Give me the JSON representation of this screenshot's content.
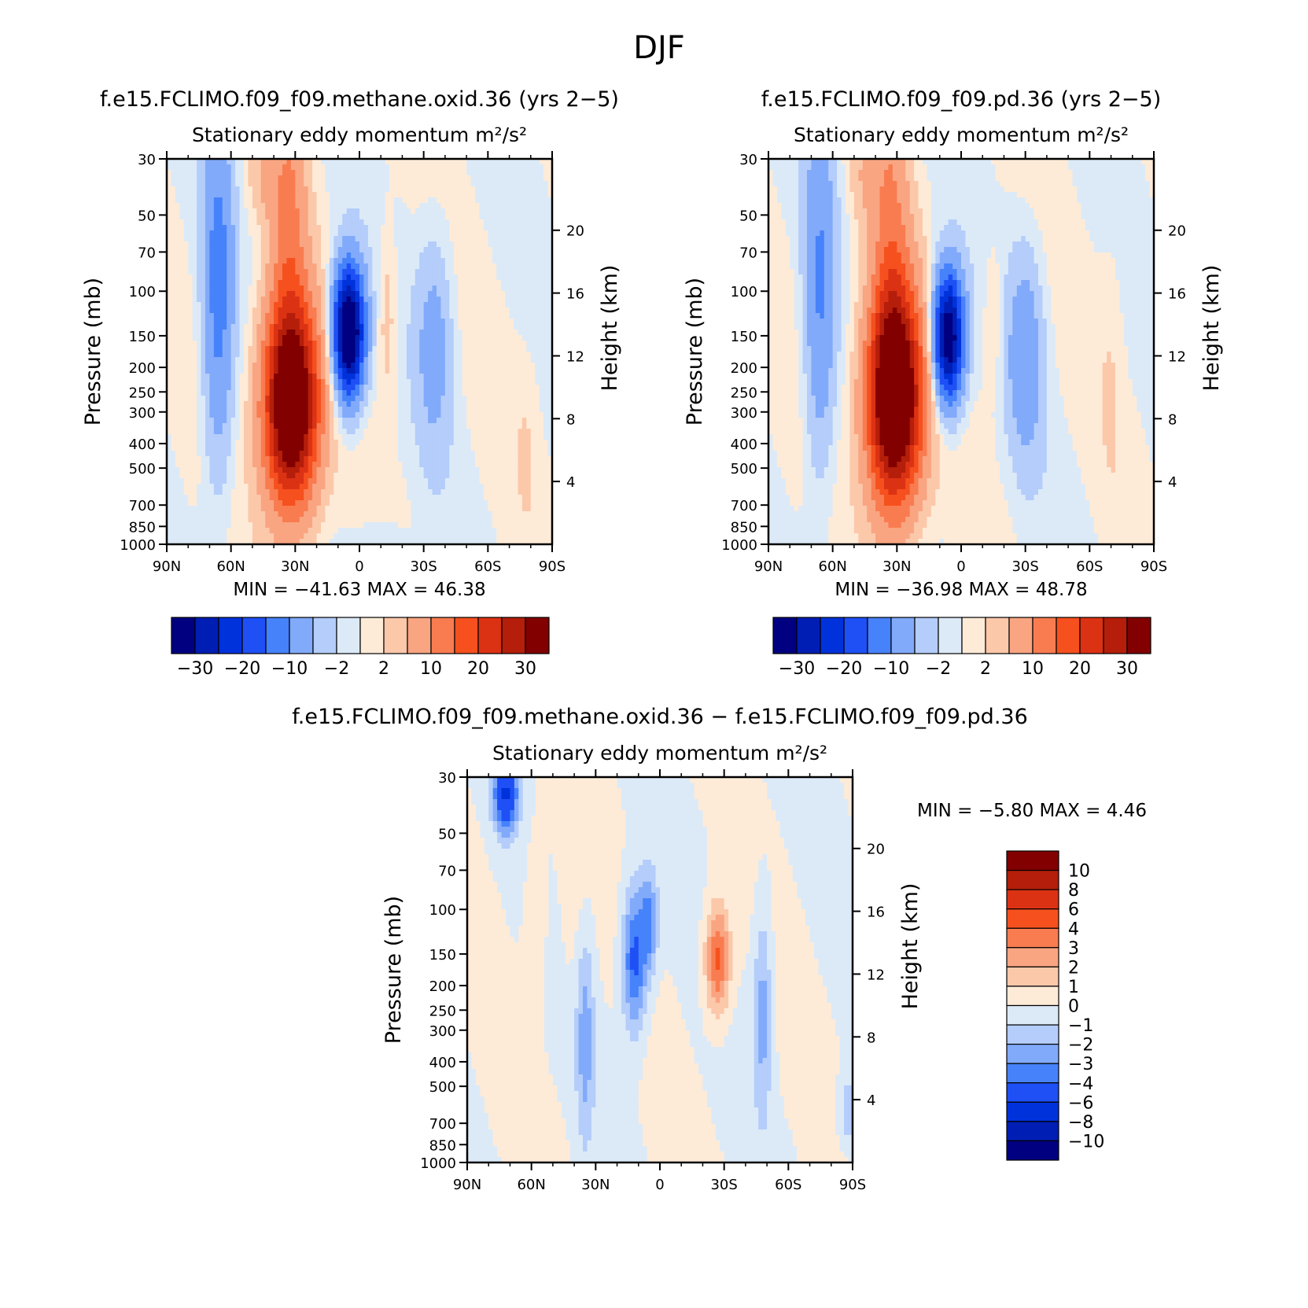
{
  "figure": {
    "title": "DJF"
  },
  "palettes": {
    "main": [
      "#000080",
      "#001eb4",
      "#0032dc",
      "#1e50f5",
      "#4682fa",
      "#82aafa",
      "#b4cdfa",
      "#dceaf8",
      "#fdebd8",
      "#fcc8aa",
      "#f9a582",
      "#f97c50",
      "#f5501e",
      "#dc3214",
      "#b41e0a",
      "#820000"
    ],
    "diff": [
      "#000080",
      "#001eb4",
      "#0032dc",
      "#1e50f5",
      "#4682fa",
      "#82aafa",
      "#b4cdfa",
      "#dceaf8",
      "#fdebd8",
      "#fcc8aa",
      "#f9a582",
      "#f97c50",
      "#f5501e",
      "#dc3214",
      "#b41e0a",
      "#820000"
    ]
  },
  "colorbars": {
    "main": {
      "labels": [
        "-30",
        "-20",
        "-10",
        "-2",
        "2",
        "10",
        "20",
        "30"
      ]
    },
    "diff": {
      "labels": [
        "10",
        "8",
        "6",
        "4",
        "3",
        "2",
        "1",
        "0",
        "-1",
        "-2",
        "-3",
        "-4",
        "-6",
        "-8",
        "-10"
      ]
    }
  },
  "chart_data": [
    {
      "id": "panel1",
      "type": "heatmap",
      "title": "f.e15.FCLIMO.f09_f09.methane.oxid.36 (yrs 2-5)",
      "subtitle": "Stationary eddy momentum",
      "units": "m²/s²",
      "ylabel": "Pressure (mb)",
      "ylabel_right": "Height (km)",
      "x_ticks": [
        "90N",
        "60N",
        "30N",
        "0",
        "30S",
        "60S",
        "90S"
      ],
      "y_ticks": [
        "30",
        "50",
        "70",
        "100",
        "150",
        "200",
        "250",
        "300",
        "400",
        "500",
        "700",
        "850",
        "1000"
      ],
      "y_right_ticks": [
        "20",
        "16",
        "12",
        "8",
        "4"
      ],
      "ylim": [
        1000,
        30
      ],
      "stats": "MIN = -41.63   MAX =  46.38",
      "min": -41.63,
      "max": 46.38,
      "features": [
        {
          "lat": 66,
          "logp": 2.0,
          "slat": 5,
          "sp": 0.5,
          "amp": -12
        },
        {
          "lat": 32,
          "logp": 2.45,
          "slat": 9,
          "sp": 0.28,
          "amp": 44
        },
        {
          "lat": 33,
          "logp": 1.7,
          "slat": 6,
          "sp": 0.4,
          "amp": 10
        },
        {
          "lat": 5,
          "logp": 2.16,
          "slat": 5,
          "sp": 0.18,
          "amp": -42
        },
        {
          "lat": -13,
          "logp": 2.1,
          "slat": 3,
          "sp": 0.25,
          "amp": 4
        },
        {
          "lat": -35,
          "logp": 2.2,
          "slat": 6,
          "sp": 0.3,
          "amp": -7
        },
        {
          "lat": 45,
          "logp": 1.55,
          "slat": 5,
          "sp": 0.12,
          "amp": 4
        },
        {
          "lat": -78,
          "logp": 2.6,
          "slat": 4,
          "sp": 0.25,
          "amp": 1.5
        },
        {
          "lat": -10,
          "logp": 2.97,
          "slat": 8,
          "sp": 0.04,
          "amp": -3
        }
      ]
    },
    {
      "id": "panel2",
      "type": "heatmap",
      "title": "f.e15.FCLIMO.f09_f09.pd.36 (yrs 2-5)",
      "subtitle": "Stationary eddy momentum",
      "units": "m²/s²",
      "ylabel": "Pressure (mb)",
      "ylabel_right": "Height (km)",
      "x_ticks": [
        "90N",
        "60N",
        "30N",
        "0",
        "30S",
        "60S",
        "90S"
      ],
      "y_ticks": [
        "30",
        "50",
        "70",
        "100",
        "150",
        "200",
        "250",
        "300",
        "400",
        "500",
        "700",
        "850",
        "1000"
      ],
      "y_right_ticks": [
        "20",
        "16",
        "12",
        "8",
        "4"
      ],
      "ylim": [
        1000,
        30
      ],
      "stats": "MIN = -36.98   MAX =  48.78",
      "min": -36.98,
      "max": 48.78,
      "features": [
        {
          "lat": 66,
          "logp": 2.0,
          "slat": 5,
          "sp": 0.5,
          "amp": -10
        },
        {
          "lat": 31,
          "logp": 2.42,
          "slat": 9,
          "sp": 0.3,
          "amp": 46
        },
        {
          "lat": 33,
          "logp": 1.7,
          "slat": 6,
          "sp": 0.45,
          "amp": 9
        },
        {
          "lat": 6,
          "logp": 2.18,
          "slat": 5,
          "sp": 0.18,
          "amp": -37
        },
        {
          "lat": -15,
          "logp": 2.1,
          "slat": 3,
          "sp": 0.2,
          "amp": 3
        },
        {
          "lat": -30,
          "logp": 2.25,
          "slat": 6,
          "sp": 0.3,
          "amp": -8
        },
        {
          "lat": 45,
          "logp": 1.55,
          "slat": 5,
          "sp": 0.15,
          "amp": 4
        },
        {
          "lat": -70,
          "logp": 2.3,
          "slat": 4,
          "sp": 0.4,
          "amp": 1.5
        }
      ]
    },
    {
      "id": "panel3",
      "type": "heatmap",
      "title": "f.e15.FCLIMO.f09_f09.methane.oxid.36 - f.e15.FCLIMO.f09_f09.pd.36",
      "subtitle": "Stationary eddy momentum",
      "units": "m²/s²",
      "ylabel": "Pressure (mb)",
      "ylabel_right": "Height (km)",
      "x_ticks": [
        "90N",
        "60N",
        "30N",
        "0",
        "30S",
        "60S",
        "90S"
      ],
      "y_ticks": [
        "30",
        "50",
        "70",
        "100",
        "150",
        "200",
        "250",
        "300",
        "400",
        "500",
        "700",
        "850",
        "1000"
      ],
      "y_right_ticks": [
        "20",
        "16",
        "12",
        "8",
        "4"
      ],
      "ylim": [
        1000,
        30
      ],
      "stats": "MIN =   -5.80   MAX =    4.46",
      "min": -5.8,
      "max": 4.46,
      "features": [
        {
          "lat": 72,
          "logp": 1.55,
          "slat": 4,
          "sp": 0.1,
          "amp": -6
        },
        {
          "lat": 12,
          "logp": 2.2,
          "slat": 4,
          "sp": 0.2,
          "amp": -4.5
        },
        {
          "lat": 5,
          "logp": 2.05,
          "slat": 3,
          "sp": 0.15,
          "amp": -3
        },
        {
          "lat": 35,
          "logp": 2.5,
          "slat": 3,
          "sp": 0.3,
          "amp": -2.5
        },
        {
          "lat": -27,
          "logp": 2.2,
          "slat": 4,
          "sp": 0.15,
          "amp": 4.5
        },
        {
          "lat": -48,
          "logp": 2.4,
          "slat": 3,
          "sp": 0.3,
          "amp": -2.5
        },
        {
          "lat": 58,
          "logp": 2.0,
          "slat": 4,
          "sp": 0.25,
          "amp": 0.8
        },
        {
          "lat": -88,
          "logp": 2.8,
          "slat": 3,
          "sp": 0.1,
          "amp": -2
        },
        {
          "lat": 40,
          "logp": 1.9,
          "slat": 5,
          "sp": 0.4,
          "amp": 0.6
        }
      ]
    }
  ]
}
